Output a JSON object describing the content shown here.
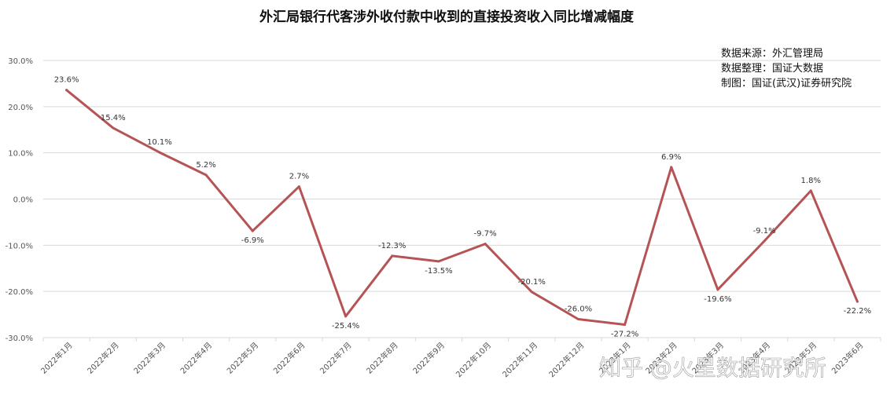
{
  "chart_data": {
    "type": "line",
    "title": "外汇局银行代客涉外收付款中收到的直接投资收入同比增减幅度",
    "categories": [
      "2022年1月",
      "2022年2月",
      "2022年3月",
      "2022年4月",
      "2022年5月",
      "2022年6月",
      "2022年7月",
      "2022年8月",
      "2022年9月",
      "2022年10月",
      "2022年11月",
      "2022年12月",
      "2023年1月",
      "2023年2月",
      "2023年3月",
      "2023年4月",
      "2023年5月",
      "2023年6月"
    ],
    "series": [
      {
        "values": [
          23.6,
          15.4,
          10.1,
          5.2,
          -6.9,
          2.7,
          -25.4,
          -12.3,
          -13.5,
          -9.7,
          -20.1,
          -26.0,
          -27.2,
          6.9,
          -19.6,
          -9.1,
          1.8,
          -22.2
        ]
      }
    ],
    "data_labels": [
      "23.6%",
      "15.4%",
      "10.1%",
      "5.2%",
      "-6.9%",
      "2.7%",
      "-25.4%",
      "-12.3%",
      "-13.5%",
      "-9.7%",
      "-20.1%",
      "-26.0%",
      "-27.2%",
      "6.9%",
      "-19.6%",
      "-9.1%",
      "1.8%",
      "-22.2%"
    ],
    "ylim": [
      -30,
      30
    ],
    "y_ticks": [
      30,
      20,
      10,
      0,
      -10,
      -20,
      -30
    ],
    "y_tick_labels": [
      "30.0%",
      "20.0%",
      "10.0%",
      "0.0%",
      "-10.0%",
      "-20.0%",
      "-30.0%"
    ],
    "grid": true,
    "line_color": "#b65355",
    "source_notes": [
      "数据来源：外汇管理局",
      "数据整理：国证大数据",
      "制图：国证(武汉)证券研究院"
    ]
  },
  "watermark": "知乎 @火星数据研究所"
}
